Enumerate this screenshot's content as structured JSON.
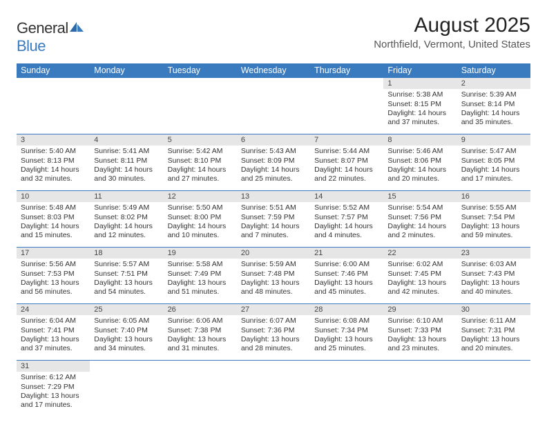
{
  "brand": {
    "name_a": "General",
    "name_b": "Blue"
  },
  "title": "August 2025",
  "location": "Northfield, Vermont, United States",
  "colors": {
    "header_bg": "#3a7bbf",
    "header_text": "#ffffff",
    "daynum_bg": "#e6e6e6",
    "body_text": "#333333",
    "rule": "#3a7bbf",
    "page_bg": "#ffffff"
  },
  "typography": {
    "title_fontsize": 30,
    "location_fontsize": 15,
    "th_fontsize": 12.5,
    "cell_fontsize": 10.5
  },
  "day_headers": [
    "Sunday",
    "Monday",
    "Tuesday",
    "Wednesday",
    "Thursday",
    "Friday",
    "Saturday"
  ],
  "weeks": [
    [
      null,
      null,
      null,
      null,
      null,
      {
        "n": "1",
        "sunrise": "Sunrise: 5:38 AM",
        "sunset": "Sunset: 8:15 PM",
        "daylight": "Daylight: 14 hours and 37 minutes."
      },
      {
        "n": "2",
        "sunrise": "Sunrise: 5:39 AM",
        "sunset": "Sunset: 8:14 PM",
        "daylight": "Daylight: 14 hours and 35 minutes."
      }
    ],
    [
      {
        "n": "3",
        "sunrise": "Sunrise: 5:40 AM",
        "sunset": "Sunset: 8:13 PM",
        "daylight": "Daylight: 14 hours and 32 minutes."
      },
      {
        "n": "4",
        "sunrise": "Sunrise: 5:41 AM",
        "sunset": "Sunset: 8:11 PM",
        "daylight": "Daylight: 14 hours and 30 minutes."
      },
      {
        "n": "5",
        "sunrise": "Sunrise: 5:42 AM",
        "sunset": "Sunset: 8:10 PM",
        "daylight": "Daylight: 14 hours and 27 minutes."
      },
      {
        "n": "6",
        "sunrise": "Sunrise: 5:43 AM",
        "sunset": "Sunset: 8:09 PM",
        "daylight": "Daylight: 14 hours and 25 minutes."
      },
      {
        "n": "7",
        "sunrise": "Sunrise: 5:44 AM",
        "sunset": "Sunset: 8:07 PM",
        "daylight": "Daylight: 14 hours and 22 minutes."
      },
      {
        "n": "8",
        "sunrise": "Sunrise: 5:46 AM",
        "sunset": "Sunset: 8:06 PM",
        "daylight": "Daylight: 14 hours and 20 minutes."
      },
      {
        "n": "9",
        "sunrise": "Sunrise: 5:47 AM",
        "sunset": "Sunset: 8:05 PM",
        "daylight": "Daylight: 14 hours and 17 minutes."
      }
    ],
    [
      {
        "n": "10",
        "sunrise": "Sunrise: 5:48 AM",
        "sunset": "Sunset: 8:03 PM",
        "daylight": "Daylight: 14 hours and 15 minutes."
      },
      {
        "n": "11",
        "sunrise": "Sunrise: 5:49 AM",
        "sunset": "Sunset: 8:02 PM",
        "daylight": "Daylight: 14 hours and 12 minutes."
      },
      {
        "n": "12",
        "sunrise": "Sunrise: 5:50 AM",
        "sunset": "Sunset: 8:00 PM",
        "daylight": "Daylight: 14 hours and 10 minutes."
      },
      {
        "n": "13",
        "sunrise": "Sunrise: 5:51 AM",
        "sunset": "Sunset: 7:59 PM",
        "daylight": "Daylight: 14 hours and 7 minutes."
      },
      {
        "n": "14",
        "sunrise": "Sunrise: 5:52 AM",
        "sunset": "Sunset: 7:57 PM",
        "daylight": "Daylight: 14 hours and 4 minutes."
      },
      {
        "n": "15",
        "sunrise": "Sunrise: 5:54 AM",
        "sunset": "Sunset: 7:56 PM",
        "daylight": "Daylight: 14 hours and 2 minutes."
      },
      {
        "n": "16",
        "sunrise": "Sunrise: 5:55 AM",
        "sunset": "Sunset: 7:54 PM",
        "daylight": "Daylight: 13 hours and 59 minutes."
      }
    ],
    [
      {
        "n": "17",
        "sunrise": "Sunrise: 5:56 AM",
        "sunset": "Sunset: 7:53 PM",
        "daylight": "Daylight: 13 hours and 56 minutes."
      },
      {
        "n": "18",
        "sunrise": "Sunrise: 5:57 AM",
        "sunset": "Sunset: 7:51 PM",
        "daylight": "Daylight: 13 hours and 54 minutes."
      },
      {
        "n": "19",
        "sunrise": "Sunrise: 5:58 AM",
        "sunset": "Sunset: 7:49 PM",
        "daylight": "Daylight: 13 hours and 51 minutes."
      },
      {
        "n": "20",
        "sunrise": "Sunrise: 5:59 AM",
        "sunset": "Sunset: 7:48 PM",
        "daylight": "Daylight: 13 hours and 48 minutes."
      },
      {
        "n": "21",
        "sunrise": "Sunrise: 6:00 AM",
        "sunset": "Sunset: 7:46 PM",
        "daylight": "Daylight: 13 hours and 45 minutes."
      },
      {
        "n": "22",
        "sunrise": "Sunrise: 6:02 AM",
        "sunset": "Sunset: 7:45 PM",
        "daylight": "Daylight: 13 hours and 42 minutes."
      },
      {
        "n": "23",
        "sunrise": "Sunrise: 6:03 AM",
        "sunset": "Sunset: 7:43 PM",
        "daylight": "Daylight: 13 hours and 40 minutes."
      }
    ],
    [
      {
        "n": "24",
        "sunrise": "Sunrise: 6:04 AM",
        "sunset": "Sunset: 7:41 PM",
        "daylight": "Daylight: 13 hours and 37 minutes."
      },
      {
        "n": "25",
        "sunrise": "Sunrise: 6:05 AM",
        "sunset": "Sunset: 7:40 PM",
        "daylight": "Daylight: 13 hours and 34 minutes."
      },
      {
        "n": "26",
        "sunrise": "Sunrise: 6:06 AM",
        "sunset": "Sunset: 7:38 PM",
        "daylight": "Daylight: 13 hours and 31 minutes."
      },
      {
        "n": "27",
        "sunrise": "Sunrise: 6:07 AM",
        "sunset": "Sunset: 7:36 PM",
        "daylight": "Daylight: 13 hours and 28 minutes."
      },
      {
        "n": "28",
        "sunrise": "Sunrise: 6:08 AM",
        "sunset": "Sunset: 7:34 PM",
        "daylight": "Daylight: 13 hours and 25 minutes."
      },
      {
        "n": "29",
        "sunrise": "Sunrise: 6:10 AM",
        "sunset": "Sunset: 7:33 PM",
        "daylight": "Daylight: 13 hours and 23 minutes."
      },
      {
        "n": "30",
        "sunrise": "Sunrise: 6:11 AM",
        "sunset": "Sunset: 7:31 PM",
        "daylight": "Daylight: 13 hours and 20 minutes."
      }
    ],
    [
      {
        "n": "31",
        "sunrise": "Sunrise: 6:12 AM",
        "sunset": "Sunset: 7:29 PM",
        "daylight": "Daylight: 13 hours and 17 minutes."
      },
      null,
      null,
      null,
      null,
      null,
      null
    ]
  ]
}
